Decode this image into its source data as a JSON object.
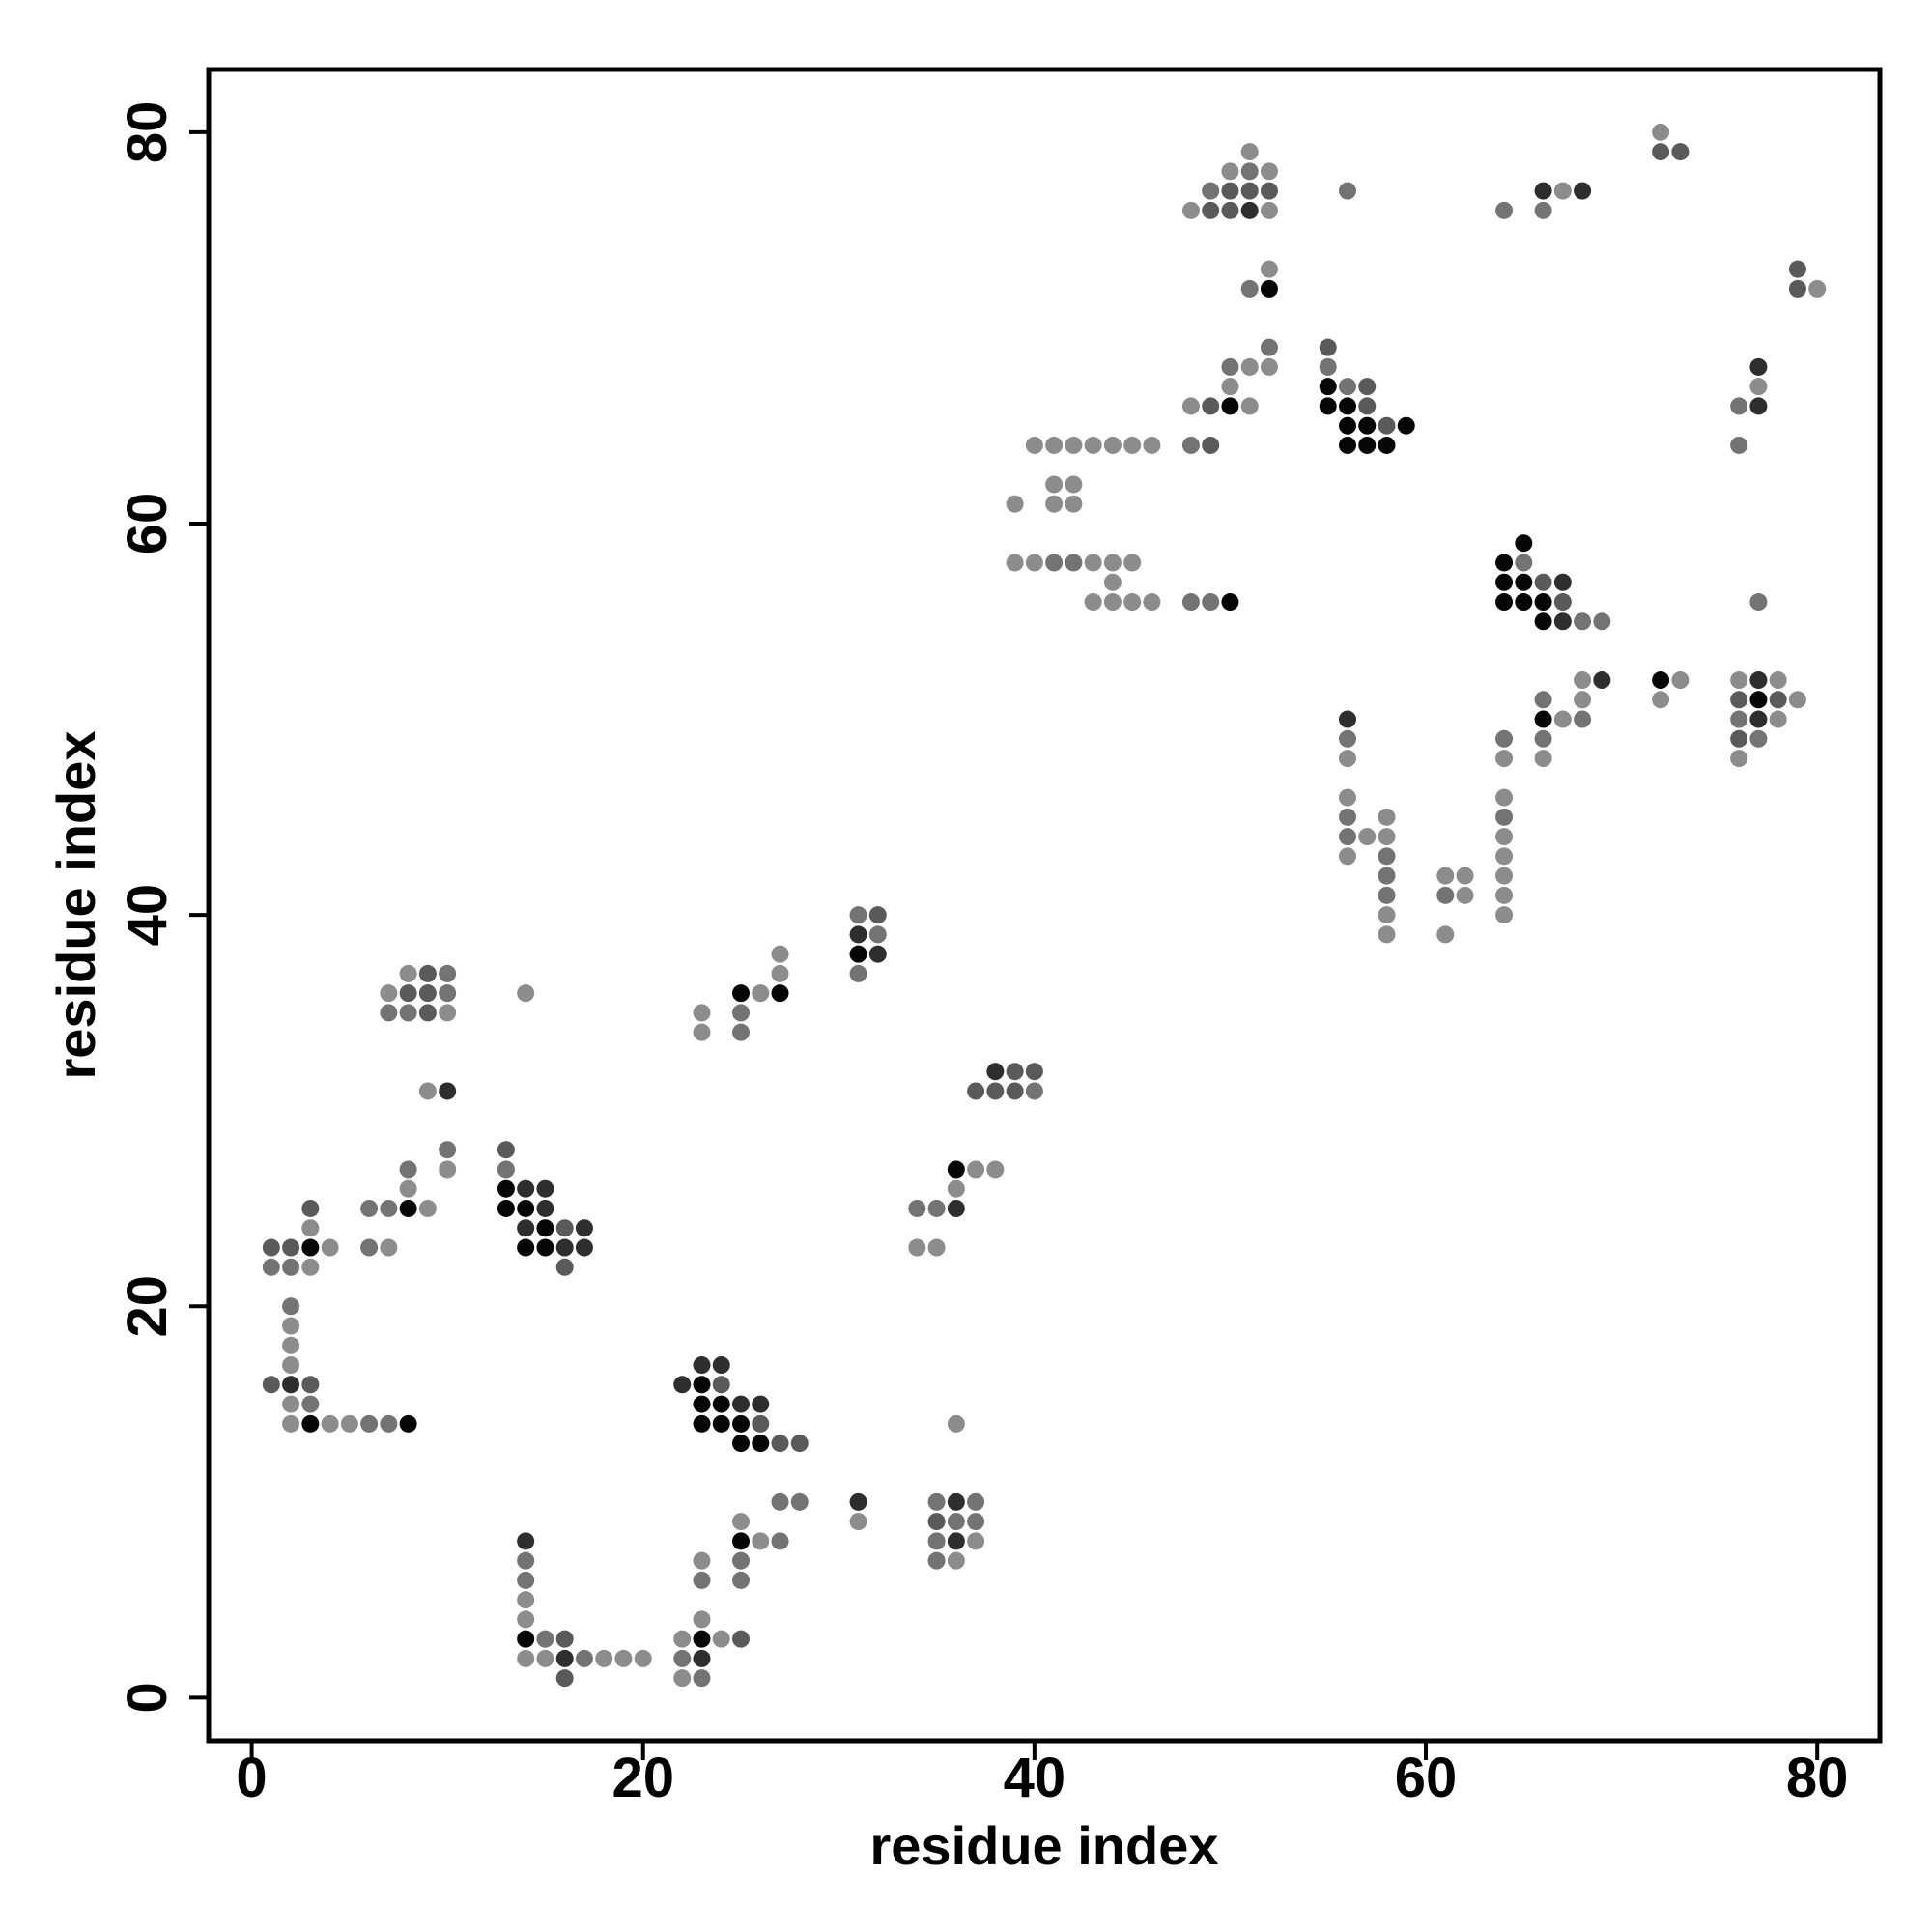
{
  "chart_data": {
    "type": "scatter",
    "title": "",
    "xlabel": "residue index",
    "ylabel": "residue index",
    "xlim": [
      -2.2,
      83.2
    ],
    "ylim": [
      -2.2,
      83.2
    ],
    "xticks": [
      0,
      20,
      40,
      60,
      80
    ],
    "yticks": [
      0,
      20,
      40,
      60,
      80
    ],
    "grid": false,
    "legend": "none",
    "colors": {
      "lightest": "#8c8c8c",
      "light": "#737373",
      "medium": "#5a5a5a",
      "dark": "#2e2e2e",
      "darkest": "#050505"
    },
    "points": [
      [
        1,
        23,
        "medium"
      ],
      [
        2,
        23,
        "medium"
      ],
      [
        3,
        23,
        "darkest"
      ],
      [
        1,
        22,
        "light"
      ],
      [
        2,
        22,
        "light"
      ],
      [
        3,
        22,
        "lightest"
      ],
      [
        3,
        24,
        "lightest"
      ],
      [
        3,
        25,
        "medium"
      ],
      [
        4,
        23,
        "lightest"
      ],
      [
        2,
        20,
        "light"
      ],
      [
        2,
        19,
        "lightest"
      ],
      [
        2,
        18,
        "lightest"
      ],
      [
        2,
        17,
        "lightest"
      ],
      [
        1,
        16,
        "medium"
      ],
      [
        2,
        16,
        "dark"
      ],
      [
        3,
        16,
        "medium"
      ],
      [
        2,
        15,
        "lightest"
      ],
      [
        3,
        15,
        "light"
      ],
      [
        2,
        14,
        "lightest"
      ],
      [
        3,
        14,
        "darkest"
      ],
      [
        4,
        14,
        "lightest"
      ],
      [
        5,
        14,
        "lightest"
      ],
      [
        6,
        14,
        "light"
      ],
      [
        7,
        14,
        "light"
      ],
      [
        8,
        14,
        "darkest"
      ],
      [
        6,
        25,
        "light"
      ],
      [
        7,
        25,
        "light"
      ],
      [
        8,
        25,
        "darkest"
      ],
      [
        9,
        25,
        "lightest"
      ],
      [
        6,
        23,
        "light"
      ],
      [
        7,
        23,
        "lightest"
      ],
      [
        8,
        26,
        "lightest"
      ],
      [
        8,
        27,
        "light"
      ],
      [
        7,
        36,
        "lightest"
      ],
      [
        8,
        36,
        "medium"
      ],
      [
        9,
        36,
        "medium"
      ],
      [
        10,
        36,
        "light"
      ],
      [
        7,
        35,
        "light"
      ],
      [
        8,
        35,
        "light"
      ],
      [
        9,
        35,
        "medium"
      ],
      [
        10,
        35,
        "lightest"
      ],
      [
        8,
        37,
        "lightest"
      ],
      [
        9,
        37,
        "medium"
      ],
      [
        10,
        37,
        "light"
      ],
      [
        9,
        31,
        "lightest"
      ],
      [
        10,
        31,
        "dark"
      ],
      [
        10,
        28,
        "light"
      ],
      [
        10,
        27,
        "lightest"
      ],
      [
        14,
        36,
        "lightest"
      ],
      [
        13,
        28,
        "medium"
      ],
      [
        13,
        27,
        "light"
      ],
      [
        13,
        26,
        "darkest"
      ],
      [
        14,
        26,
        "dark"
      ],
      [
        15,
        26,
        "dark"
      ],
      [
        13,
        25,
        "darkest"
      ],
      [
        14,
        25,
        "darkest"
      ],
      [
        15,
        25,
        "dark"
      ],
      [
        14,
        24,
        "dark"
      ],
      [
        15,
        24,
        "darkest"
      ],
      [
        16,
        24,
        "medium"
      ],
      [
        17,
        24,
        "dark"
      ],
      [
        14,
        23,
        "darkest"
      ],
      [
        15,
        23,
        "darkest"
      ],
      [
        16,
        23,
        "dark"
      ],
      [
        17,
        23,
        "dark"
      ],
      [
        16,
        22,
        "medium"
      ],
      [
        14,
        8,
        "dark"
      ],
      [
        14,
        7,
        "light"
      ],
      [
        14,
        6,
        "light"
      ],
      [
        14,
        5,
        "lightest"
      ],
      [
        14,
        4,
        "lightest"
      ],
      [
        14,
        3,
        "darkest"
      ],
      [
        15,
        3,
        "light"
      ],
      [
        16,
        3,
        "medium"
      ],
      [
        14,
        2,
        "lightest"
      ],
      [
        15,
        2,
        "lightest"
      ],
      [
        16,
        2,
        "dark"
      ],
      [
        17,
        2,
        "light"
      ],
      [
        18,
        2,
        "lightest"
      ],
      [
        19,
        2,
        "lightest"
      ],
      [
        20,
        2,
        "lightest"
      ],
      [
        16,
        1,
        "medium"
      ],
      [
        22,
        3,
        "lightest"
      ],
      [
        23,
        3,
        "darkest"
      ],
      [
        22,
        2,
        "light"
      ],
      [
        23,
        2,
        "dark"
      ],
      [
        22,
        1,
        "lightest"
      ],
      [
        23,
        1,
        "light"
      ],
      [
        23,
        4,
        "lightest"
      ],
      [
        24,
        3,
        "lightest"
      ],
      [
        25,
        3,
        "medium"
      ],
      [
        23,
        6,
        "light"
      ],
      [
        23,
        7,
        "lightest"
      ],
      [
        25,
        9,
        "lightest"
      ],
      [
        25,
        8,
        "darkest"
      ],
      [
        26,
        8,
        "lightest"
      ],
      [
        27,
        8,
        "light"
      ],
      [
        25,
        7,
        "light"
      ],
      [
        25,
        6,
        "light"
      ],
      [
        27,
        10,
        "light"
      ],
      [
        28,
        10,
        "light"
      ],
      [
        31,
        10,
        "dark"
      ],
      [
        31,
        9,
        "lightest"
      ],
      [
        35,
        10,
        "light"
      ],
      [
        36,
        10,
        "dark"
      ],
      [
        37,
        10,
        "light"
      ],
      [
        35,
        9,
        "medium"
      ],
      [
        36,
        9,
        "light"
      ],
      [
        37,
        9,
        "light"
      ],
      [
        35,
        8,
        "light"
      ],
      [
        36,
        8,
        "dark"
      ],
      [
        37,
        8,
        "lightest"
      ],
      [
        35,
        7,
        "light"
      ],
      [
        36,
        7,
        "lightest"
      ],
      [
        36,
        14,
        "lightest"
      ],
      [
        22,
        16,
        "dark"
      ],
      [
        23,
        17,
        "dark"
      ],
      [
        24,
        17,
        "dark"
      ],
      [
        23,
        16,
        "darkest"
      ],
      [
        24,
        16,
        "medium"
      ],
      [
        23,
        15,
        "darkest"
      ],
      [
        24,
        15,
        "darkest"
      ],
      [
        25,
        15,
        "dark"
      ],
      [
        26,
        15,
        "dark"
      ],
      [
        23,
        14,
        "darkest"
      ],
      [
        24,
        14,
        "darkest"
      ],
      [
        25,
        14,
        "darkest"
      ],
      [
        26,
        14,
        "medium"
      ],
      [
        25,
        13,
        "darkest"
      ],
      [
        26,
        13,
        "darkest"
      ],
      [
        27,
        13,
        "medium"
      ],
      [
        28,
        13,
        "medium"
      ],
      [
        23,
        35,
        "lightest"
      ],
      [
        23,
        34,
        "lightest"
      ],
      [
        25,
        36,
        "darkest"
      ],
      [
        26,
        36,
        "lightest"
      ],
      [
        27,
        36,
        "darkest"
      ],
      [
        25,
        35,
        "light"
      ],
      [
        25,
        34,
        "light"
      ],
      [
        27,
        37,
        "lightest"
      ],
      [
        27,
        38,
        "lightest"
      ],
      [
        31,
        40,
        "light"
      ],
      [
        32,
        40,
        "medium"
      ],
      [
        31,
        39,
        "dark"
      ],
      [
        32,
        39,
        "light"
      ],
      [
        31,
        38,
        "darkest"
      ],
      [
        32,
        38,
        "dark"
      ],
      [
        31,
        37,
        "light"
      ],
      [
        34,
        25,
        "light"
      ],
      [
        35,
        25,
        "light"
      ],
      [
        36,
        25,
        "dark"
      ],
      [
        34,
        23,
        "lightest"
      ],
      [
        35,
        23,
        "lightest"
      ],
      [
        36,
        26,
        "lightest"
      ],
      [
        36,
        27,
        "darkest"
      ],
      [
        37,
        27,
        "lightest"
      ],
      [
        38,
        27,
        "lightest"
      ],
      [
        37,
        31,
        "medium"
      ],
      [
        38,
        31,
        "medium"
      ],
      [
        39,
        31,
        "medium"
      ],
      [
        40,
        31,
        "light"
      ],
      [
        38,
        32,
        "dark"
      ],
      [
        39,
        32,
        "medium"
      ],
      [
        40,
        32,
        "medium"
      ],
      [
        40,
        64,
        "lightest"
      ],
      [
        41,
        64,
        "lightest"
      ],
      [
        42,
        64,
        "lightest"
      ],
      [
        43,
        64,
        "lightest"
      ],
      [
        44,
        64,
        "lightest"
      ],
      [
        45,
        64,
        "lightest"
      ],
      [
        46,
        64,
        "lightest"
      ],
      [
        39,
        61,
        "lightest"
      ],
      [
        41,
        62,
        "lightest"
      ],
      [
        42,
        62,
        "lightest"
      ],
      [
        41,
        61,
        "lightest"
      ],
      [
        42,
        61,
        "lightest"
      ],
      [
        39,
        58,
        "lightest"
      ],
      [
        40,
        58,
        "lightest"
      ],
      [
        41,
        58,
        "light"
      ],
      [
        42,
        58,
        "light"
      ],
      [
        43,
        58,
        "lightest"
      ],
      [
        44,
        58,
        "lightest"
      ],
      [
        45,
        58,
        "lightest"
      ],
      [
        44,
        57,
        "lightest"
      ],
      [
        43,
        56,
        "lightest"
      ],
      [
        44,
        56,
        "lightest"
      ],
      [
        45,
        56,
        "lightest"
      ],
      [
        46,
        56,
        "lightest"
      ],
      [
        48,
        56,
        "light"
      ],
      [
        49,
        56,
        "light"
      ],
      [
        50,
        56,
        "darkest"
      ],
      [
        48,
        64,
        "light"
      ],
      [
        49,
        64,
        "medium"
      ],
      [
        48,
        66,
        "lightest"
      ],
      [
        49,
        66,
        "medium"
      ],
      [
        50,
        66,
        "darkest"
      ],
      [
        51,
        66,
        "lightest"
      ],
      [
        50,
        67,
        "lightest"
      ],
      [
        50,
        68,
        "light"
      ],
      [
        51,
        68,
        "lightest"
      ],
      [
        52,
        68,
        "lightest"
      ],
      [
        52,
        69,
        "light"
      ],
      [
        51,
        72,
        "light"
      ],
      [
        52,
        72,
        "darkest"
      ],
      [
        52,
        73,
        "lightest"
      ],
      [
        48,
        76,
        "lightest"
      ],
      [
        49,
        76,
        "medium"
      ],
      [
        50,
        76,
        "medium"
      ],
      [
        51,
        76,
        "dark"
      ],
      [
        52,
        76,
        "lightest"
      ],
      [
        49,
        77,
        "light"
      ],
      [
        50,
        77,
        "medium"
      ],
      [
        51,
        77,
        "medium"
      ],
      [
        52,
        77,
        "medium"
      ],
      [
        50,
        78,
        "lightest"
      ],
      [
        51,
        78,
        "light"
      ],
      [
        52,
        78,
        "lightest"
      ],
      [
        51,
        79,
        "lightest"
      ],
      [
        56,
        77,
        "light"
      ],
      [
        55,
        69,
        "medium"
      ],
      [
        55,
        68,
        "light"
      ],
      [
        55,
        67,
        "darkest"
      ],
      [
        56,
        67,
        "light"
      ],
      [
        57,
        67,
        "medium"
      ],
      [
        55,
        66,
        "darkest"
      ],
      [
        56,
        66,
        "darkest"
      ],
      [
        57,
        66,
        "medium"
      ],
      [
        56,
        65,
        "darkest"
      ],
      [
        57,
        65,
        "darkest"
      ],
      [
        58,
        65,
        "medium"
      ],
      [
        59,
        65,
        "darkest"
      ],
      [
        56,
        64,
        "darkest"
      ],
      [
        57,
        64,
        "darkest"
      ],
      [
        58,
        64,
        "darkest"
      ],
      [
        56,
        50,
        "dark"
      ],
      [
        56,
        49,
        "light"
      ],
      [
        56,
        48,
        "lightest"
      ],
      [
        56,
        46,
        "lightest"
      ],
      [
        56,
        45,
        "light"
      ],
      [
        56,
        44,
        "light"
      ],
      [
        57,
        44,
        "lightest"
      ],
      [
        56,
        43,
        "lightest"
      ],
      [
        58,
        45,
        "lightest"
      ],
      [
        58,
        44,
        "lightest"
      ],
      [
        58,
        43,
        "light"
      ],
      [
        58,
        42,
        "light"
      ],
      [
        58,
        41,
        "light"
      ],
      [
        58,
        40,
        "lightest"
      ],
      [
        58,
        39,
        "lightest"
      ],
      [
        61,
        42,
        "lightest"
      ],
      [
        62,
        42,
        "lightest"
      ],
      [
        61,
        41,
        "light"
      ],
      [
        62,
        41,
        "lightest"
      ],
      [
        61,
        39,
        "lightest"
      ],
      [
        64,
        49,
        "light"
      ],
      [
        64,
        48,
        "lightest"
      ],
      [
        64,
        46,
        "lightest"
      ],
      [
        64,
        45,
        "light"
      ],
      [
        64,
        44,
        "lightest"
      ],
      [
        64,
        43,
        "lightest"
      ],
      [
        64,
        42,
        "lightest"
      ],
      [
        64,
        41,
        "lightest"
      ],
      [
        64,
        40,
        "lightest"
      ],
      [
        66,
        51,
        "light"
      ],
      [
        66,
        50,
        "darkest"
      ],
      [
        67,
        50,
        "lightest"
      ],
      [
        68,
        50,
        "light"
      ],
      [
        66,
        49,
        "light"
      ],
      [
        66,
        48,
        "lightest"
      ],
      [
        68,
        51,
        "lightest"
      ],
      [
        68,
        52,
        "lightest"
      ],
      [
        69,
        52,
        "dark"
      ],
      [
        64,
        58,
        "darkest"
      ],
      [
        65,
        58,
        "light"
      ],
      [
        65,
        59,
        "darkest"
      ],
      [
        64,
        57,
        "darkest"
      ],
      [
        65,
        57,
        "darkest"
      ],
      [
        66,
        57,
        "medium"
      ],
      [
        67,
        57,
        "dark"
      ],
      [
        64,
        56,
        "darkest"
      ],
      [
        65,
        56,
        "darkest"
      ],
      [
        66,
        56,
        "darkest"
      ],
      [
        67,
        56,
        "medium"
      ],
      [
        66,
        55,
        "darkest"
      ],
      [
        67,
        55,
        "dark"
      ],
      [
        68,
        55,
        "light"
      ],
      [
        69,
        55,
        "light"
      ],
      [
        64,
        76,
        "light"
      ],
      [
        66,
        77,
        "dark"
      ],
      [
        67,
        77,
        "lightest"
      ],
      [
        68,
        77,
        "dark"
      ],
      [
        66,
        76,
        "light"
      ],
      [
        72,
        80,
        "lightest"
      ],
      [
        72,
        79,
        "medium"
      ],
      [
        73,
        79,
        "medium"
      ],
      [
        72,
        52,
        "darkest"
      ],
      [
        73,
        52,
        "lightest"
      ],
      [
        72,
        51,
        "lightest"
      ],
      [
        76,
        52,
        "lightest"
      ],
      [
        77,
        52,
        "dark"
      ],
      [
        78,
        52,
        "lightest"
      ],
      [
        76,
        51,
        "medium"
      ],
      [
        77,
        51,
        "darkest"
      ],
      [
        78,
        51,
        "medium"
      ],
      [
        79,
        51,
        "lightest"
      ],
      [
        76,
        50,
        "light"
      ],
      [
        77,
        50,
        "dark"
      ],
      [
        78,
        50,
        "lightest"
      ],
      [
        76,
        49,
        "medium"
      ],
      [
        77,
        49,
        "light"
      ],
      [
        76,
        48,
        "lightest"
      ],
      [
        79,
        73,
        "medium"
      ],
      [
        79,
        72,
        "medium"
      ],
      [
        80,
        72,
        "lightest"
      ],
      [
        76,
        66,
        "light"
      ],
      [
        77,
        66,
        "dark"
      ],
      [
        77,
        67,
        "lightest"
      ],
      [
        77,
        68,
        "dark"
      ],
      [
        76,
        64,
        "light"
      ],
      [
        77,
        56,
        "light"
      ]
    ]
  }
}
